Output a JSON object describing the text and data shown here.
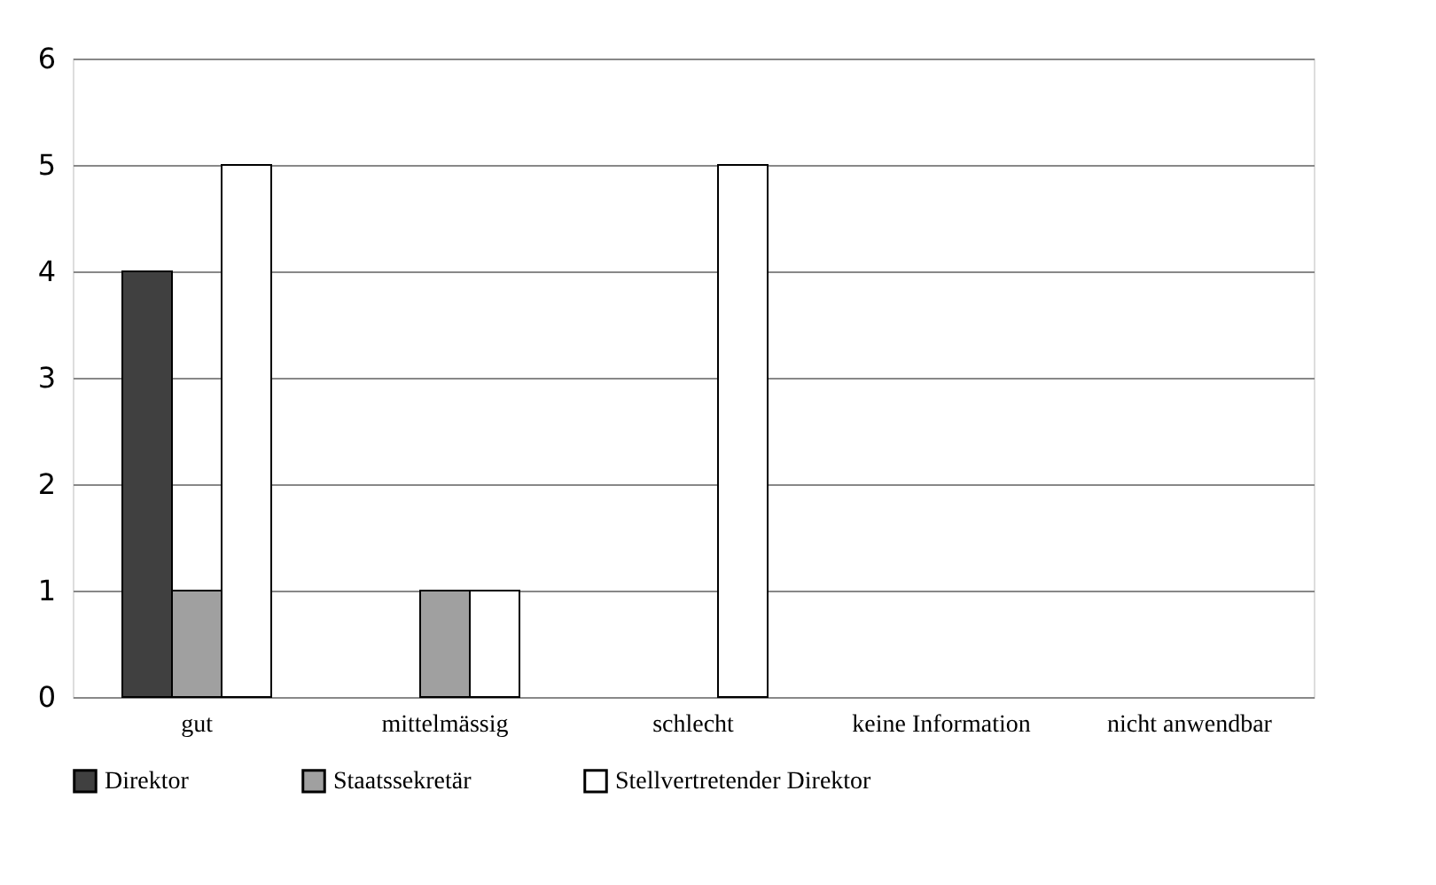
{
  "chart_data": {
    "type": "bar",
    "categories": [
      "gut",
      "mittelmässig",
      "schlecht",
      "keine Information",
      "nicht anwendbar"
    ],
    "series": [
      {
        "name": "Direktor",
        "color": "#404040",
        "values": [
          4,
          0,
          0,
          0,
          0
        ]
      },
      {
        "name": "Staatssekretär",
        "color": "#a0a0a0",
        "values": [
          1,
          1,
          0,
          0,
          0
        ]
      },
      {
        "name": "Stellvertretender Direktor",
        "color": "#ffffff",
        "values": [
          5,
          1,
          5,
          0,
          0
        ]
      }
    ],
    "ylim": [
      0,
      6
    ],
    "yticks": [
      0,
      1,
      2,
      3,
      4,
      5,
      6
    ],
    "grid": "y",
    "legend": "bottom"
  }
}
